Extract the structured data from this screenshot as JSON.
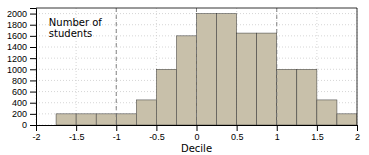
{
  "chart_data": {
    "type": "histogram",
    "xlabel": "Decile",
    "ylabel": "Number of\nstudents",
    "bins": [
      -2.0,
      -1.75,
      -1.5,
      -1.25,
      -1.0,
      -0.75,
      -0.5,
      -0.25,
      0.0,
      0.25,
      0.5,
      0.75,
      1.0,
      1.25,
      1.5,
      1.75,
      2.0
    ],
    "values": [
      0,
      200,
      200,
      200,
      200,
      450,
      1000,
      1600,
      2000,
      2000,
      1650,
      1650,
      1000,
      1000,
      450,
      200
    ],
    "color": "#c8c0aa",
    "xlim": [
      -2,
      2
    ],
    "ylim": [
      0,
      2100
    ],
    "xticks": [
      -2,
      -1.5,
      -1,
      -0.5,
      0,
      0.5,
      1,
      1.5,
      2
    ],
    "yticks": [
      0,
      200,
      400,
      600,
      800,
      1000,
      1200,
      1400,
      1600,
      1800,
      2000
    ],
    "reference_lines": [
      -1,
      0,
      1
    ],
    "grid": true
  }
}
